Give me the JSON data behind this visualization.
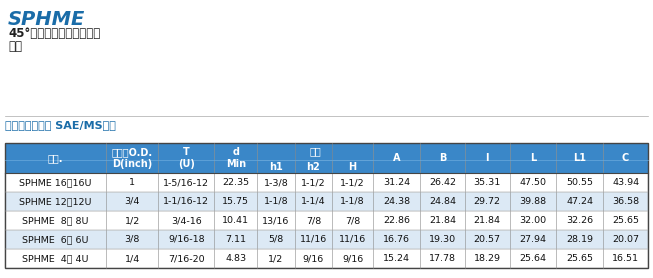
{
  "title_line1": "SPHME",
  "title_line2": "45°公螺纹垫圈密封转卡套",
  "title_line3": "弯头",
  "subtitle": "连接英制管道和 SAE/MS螺纹",
  "header_bg": "#3a87c8",
  "header_text_color": "#ffffff",
  "alt_row_bg": "#dce9f5",
  "white_row_bg": "#ffffff",
  "span_label": "宽度",
  "rows": [
    [
      "SPHME  4－ 4U",
      "1/4",
      "7/16-20",
      "4.83",
      "1/2",
      "9/16",
      "9/16",
      "15.24",
      "17.78",
      "18.29",
      "25.64",
      "25.65",
      "16.51"
    ],
    [
      "SPHME  6－ 6U",
      "3/8",
      "9/16-18",
      "7.11",
      "5/8",
      "11/16",
      "11/16",
      "16.76",
      "19.30",
      "20.57",
      "27.94",
      "28.19",
      "20.07"
    ],
    [
      "SPHME  8－ 8U",
      "1/2",
      "3/4-16",
      "10.41",
      "13/16",
      "7/8",
      "7/8",
      "22.86",
      "21.84",
      "21.84",
      "32.00",
      "32.26",
      "25.65"
    ],
    [
      "SPHME 12－12U",
      "3/4",
      "1-1/16-12",
      "15.75",
      "1-1/8",
      "1-1/4",
      "1-1/8",
      "24.38",
      "24.84",
      "29.72",
      "39.88",
      "47.24",
      "36.58"
    ],
    [
      "SPHME 16－16U",
      "1",
      "1-5/16-12",
      "22.35",
      "1-3/8",
      "1-1/2",
      "1-1/2",
      "31.24",
      "26.42",
      "35.31",
      "47.50",
      "50.55",
      "43.94"
    ]
  ],
  "hdr1_labels": {
    "0": "型号.",
    "1": "管外径O.D.\nD(inch)",
    "2": "T\n(U)",
    "3": "d\nMin",
    "7": "A",
    "8": "B",
    "9": "I",
    "10": "L",
    "11": "L1",
    "12": "C"
  },
  "hdr2_labels": {
    "4": "h1",
    "5": "h2",
    "6": "H"
  },
  "title_color": "#1a6ca8",
  "subtitle_color": "#1a6ca8",
  "table_font_size": 6.8,
  "header_font_size": 7.0,
  "col_widths_raw": [
    108,
    56,
    60,
    46,
    40,
    40,
    44,
    50,
    48,
    48,
    50,
    50,
    48
  ]
}
